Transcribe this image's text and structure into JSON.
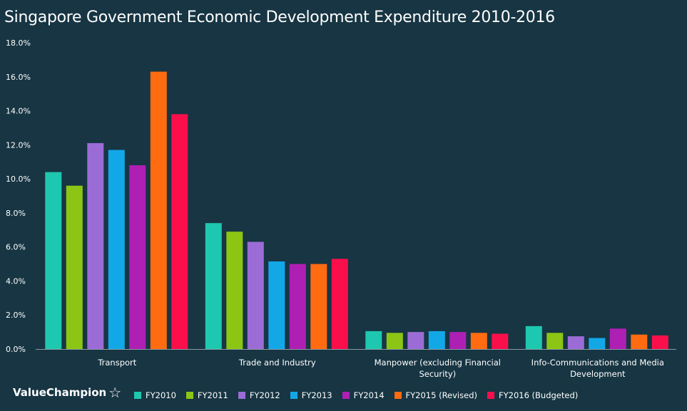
{
  "title": "Singapore Government Economic Development Expenditure 2010-2016",
  "brand": {
    "name": "ValueChampion",
    "icon": "star-outline-icon"
  },
  "chart_data": {
    "type": "bar",
    "title": "Singapore Government Economic Development Expenditure 2010-2016",
    "xlabel": "",
    "ylabel": "",
    "ylim": [
      0,
      18
    ],
    "yticks": [
      "0.0%",
      "2.0%",
      "4.0%",
      "6.0%",
      "8.0%",
      "10.0%",
      "12.0%",
      "14.0%",
      "16.0%",
      "18.0%"
    ],
    "categories": [
      [
        "Transport"
      ],
      [
        "Trade and Industry"
      ],
      [
        "Manpower (excluding Financial",
        "Security)"
      ],
      [
        "Info-Communications and Media",
        "Development"
      ]
    ],
    "series": [
      {
        "name": "FY2010",
        "color": "#1ec8b0",
        "values": [
          10.4,
          7.4,
          1.05,
          1.35
        ]
      },
      {
        "name": "FY2011",
        "color": "#8cc514",
        "values": [
          9.6,
          6.9,
          0.95,
          0.95
        ]
      },
      {
        "name": "FY2012",
        "color": "#9b6cd6",
        "values": [
          12.1,
          6.3,
          1.0,
          0.75
        ]
      },
      {
        "name": "FY2013",
        "color": "#12a8e8",
        "values": [
          11.7,
          5.15,
          1.05,
          0.65
        ]
      },
      {
        "name": "FY2014",
        "color": "#ae1fb4",
        "values": [
          10.8,
          5.0,
          1.0,
          1.2
        ]
      },
      {
        "name": "FY2015 (Revised)",
        "color": "#ff6b10",
        "values": [
          16.3,
          5.0,
          0.95,
          0.85
        ]
      },
      {
        "name": "FY2016 (Budgeted)",
        "color": "#fb0f4b",
        "values": [
          13.8,
          5.3,
          0.9,
          0.8
        ]
      }
    ],
    "grid": false,
    "legend_position": "bottom"
  }
}
